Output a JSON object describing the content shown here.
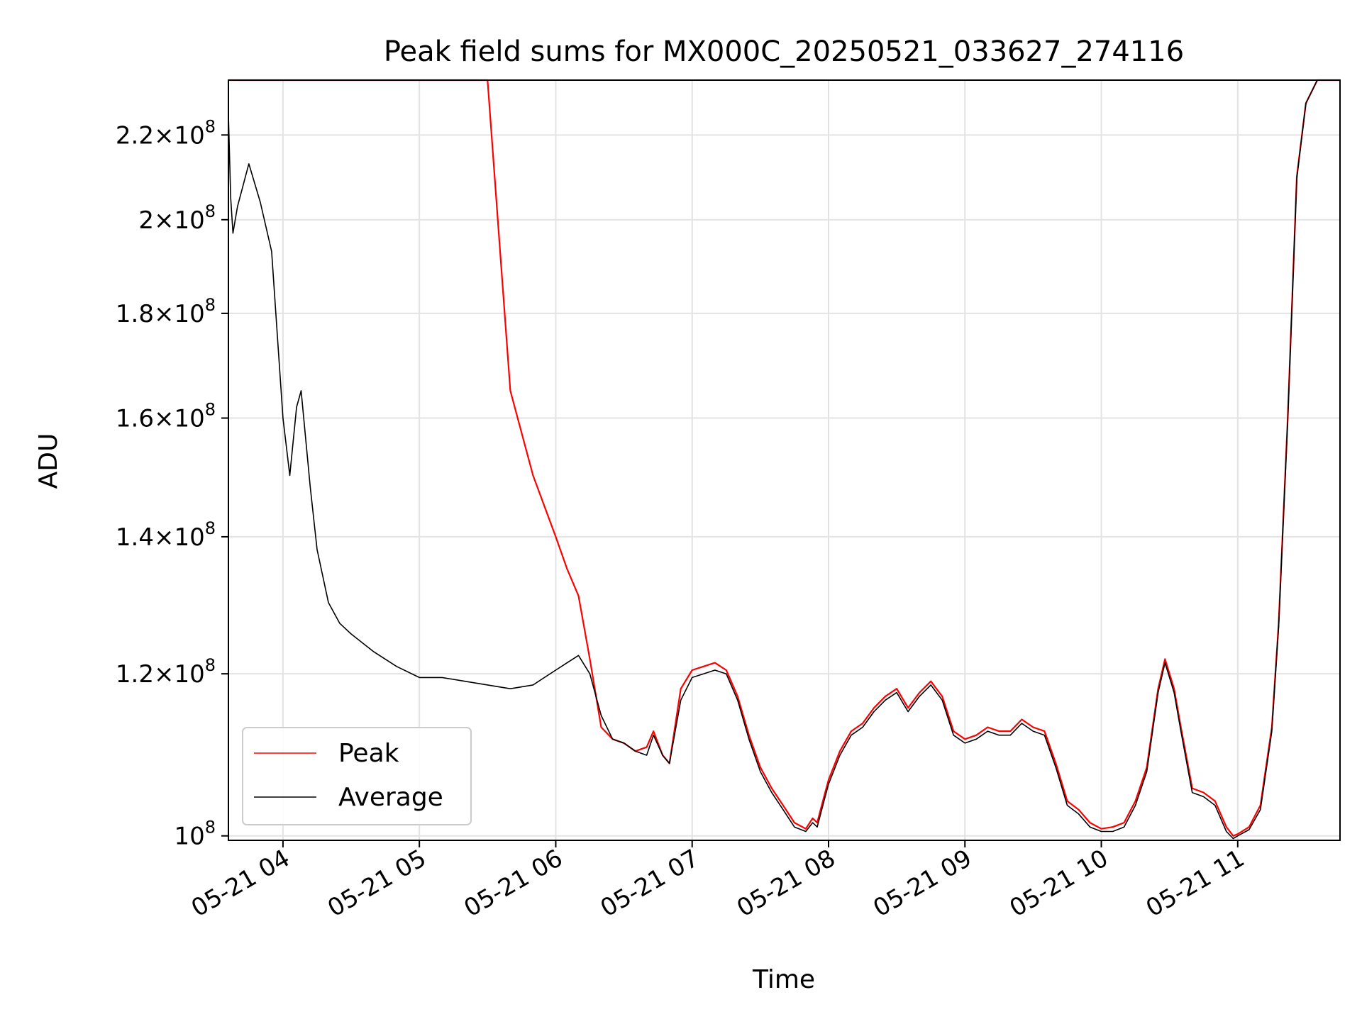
{
  "chart_data": {
    "type": "line",
    "title": "Peak field sums for MX000C_20250521_033627_274116",
    "xlabel": "Time",
    "ylabel": "ADU",
    "xlim": [
      "2025-05-21 03:36",
      "2025-05-21 11:45"
    ],
    "ylim": [
      99500000,
      234000000
    ],
    "yscale": "log",
    "grid": true,
    "legend_position": "lower-left",
    "x_ticks": [
      {
        "t": "2025-05-21 04:00",
        "label": "05-21 04"
      },
      {
        "t": "2025-05-21 05:00",
        "label": "05-21 05"
      },
      {
        "t": "2025-05-21 06:00",
        "label": "05-21 06"
      },
      {
        "t": "2025-05-21 07:00",
        "label": "05-21 07"
      },
      {
        "t": "2025-05-21 08:00",
        "label": "05-21 08"
      },
      {
        "t": "2025-05-21 09:00",
        "label": "05-21 09"
      },
      {
        "t": "2025-05-21 10:00",
        "label": "05-21 10"
      },
      {
        "t": "2025-05-21 11:00",
        "label": "05-21 11"
      }
    ],
    "y_ticks": [
      {
        "v": 100000000,
        "mantissa": "",
        "exp": "8"
      },
      {
        "v": 120000000,
        "mantissa": "1.2",
        "exp": "8"
      },
      {
        "v": 140000000,
        "mantissa": "1.4",
        "exp": "8"
      },
      {
        "v": 160000000,
        "mantissa": "1.6",
        "exp": "8"
      },
      {
        "v": 180000000,
        "mantissa": "1.8",
        "exp": "8"
      },
      {
        "v": 200000000,
        "mantissa": "2",
        "exp": "8"
      },
      {
        "v": 220000000,
        "mantissa": "2.2",
        "exp": "8"
      }
    ],
    "times_sample": [
      "2025-05-21 03:36",
      "2025-05-21 03:37",
      "2025-05-21 03:38",
      "2025-05-21 03:40",
      "2025-05-21 03:45",
      "2025-05-21 03:50",
      "2025-05-21 03:55",
      "2025-05-21 04:00",
      "2025-05-21 04:03",
      "2025-05-21 04:06",
      "2025-05-21 04:08",
      "2025-05-21 04:12",
      "2025-05-21 04:15",
      "2025-05-21 04:20",
      "2025-05-21 04:25",
      "2025-05-21 04:30",
      "2025-05-21 04:40",
      "2025-05-21 04:50",
      "2025-05-21 05:00",
      "2025-05-21 05:10",
      "2025-05-21 05:20",
      "2025-05-21 05:30",
      "2025-05-21 05:40",
      "2025-05-21 05:50",
      "2025-05-21 06:00",
      "2025-05-21 06:05",
      "2025-05-21 06:10",
      "2025-05-21 06:15",
      "2025-05-21 06:20",
      "2025-05-21 06:25",
      "2025-05-21 06:30",
      "2025-05-21 06:35",
      "2025-05-21 06:40",
      "2025-05-21 06:43",
      "2025-05-21 06:47",
      "2025-05-21 06:50",
      "2025-05-21 06:55",
      "2025-05-21 07:00",
      "2025-05-21 07:05",
      "2025-05-21 07:10",
      "2025-05-21 07:15",
      "2025-05-21 07:20",
      "2025-05-21 07:25",
      "2025-05-21 07:30",
      "2025-05-21 07:35",
      "2025-05-21 07:40",
      "2025-05-21 07:45",
      "2025-05-21 07:50",
      "2025-05-21 07:53",
      "2025-05-21 07:55",
      "2025-05-21 07:58",
      "2025-05-21 08:00",
      "2025-05-21 08:05",
      "2025-05-21 08:10",
      "2025-05-21 08:15",
      "2025-05-21 08:20",
      "2025-05-21 08:25",
      "2025-05-21 08:30",
      "2025-05-21 08:35",
      "2025-05-21 08:40",
      "2025-05-21 08:45",
      "2025-05-21 08:50",
      "2025-05-21 08:55",
      "2025-05-21 09:00",
      "2025-05-21 09:05",
      "2025-05-21 09:10",
      "2025-05-21 09:15",
      "2025-05-21 09:20",
      "2025-05-21 09:25",
      "2025-05-21 09:30",
      "2025-05-21 09:35",
      "2025-05-21 09:40",
      "2025-05-21 09:45",
      "2025-05-21 09:50",
      "2025-05-21 09:55",
      "2025-05-21 10:00",
      "2025-05-21 10:05",
      "2025-05-21 10:10",
      "2025-05-21 10:15",
      "2025-05-21 10:20",
      "2025-05-21 10:25",
      "2025-05-21 10:28",
      "2025-05-21 10:32",
      "2025-05-21 10:35",
      "2025-05-21 10:40",
      "2025-05-21 10:45",
      "2025-05-21 10:50",
      "2025-05-21 10:55",
      "2025-05-21 10:58",
      "2025-05-21 11:00",
      "2025-05-21 11:05",
      "2025-05-21 11:10",
      "2025-05-21 11:15",
      "2025-05-21 11:18",
      "2025-05-21 11:22",
      "2025-05-21 11:26",
      "2025-05-21 11:30",
      "2025-05-21 11:35",
      "2025-05-21 11:45"
    ],
    "series": [
      {
        "name": "Peak",
        "color": "#ff0000",
        "note_values": "sampled envelope of the rapidly fluctuating peak trace",
        "values": [
          234000000,
          234000000,
          234000000,
          234000000,
          234000000,
          234000000,
          234000000,
          234000000,
          234000000,
          234000000,
          234000000,
          234000000,
          234000000,
          234000000,
          234000000,
          234000000,
          234000000,
          234000000,
          234000000,
          234000000,
          234000000,
          234000000,
          165000000,
          150000000,
          140000000,
          135000000,
          131000000,
          122000000,
          113000000,
          111500000,
          111000000,
          110000000,
          110500000,
          112500000,
          109500000,
          108500000,
          118000000,
          120500000,
          121000000,
          121500000,
          120500000,
          117000000,
          112000000,
          108000000,
          105500000,
          103500000,
          101500000,
          100800000,
          102000000,
          101500000,
          104500000,
          106500000,
          110000000,
          112500000,
          113500000,
          115500000,
          117000000,
          118000000,
          115500000,
          117500000,
          119000000,
          117000000,
          112500000,
          111500000,
          112000000,
          113000000,
          112500000,
          112500000,
          114000000,
          113000000,
          112500000,
          108500000,
          104000000,
          103000000,
          101500000,
          100800000,
          101000000,
          101500000,
          104000000,
          108000000,
          118000000,
          122000000,
          118000000,
          113000000,
          105500000,
          105000000,
          104000000,
          101000000,
          100000000,
          100200000,
          101000000,
          103500000,
          113000000,
          127000000,
          160000000,
          210000000,
          228000000,
          234000000,
          234000000
        ]
      },
      {
        "name": "Average",
        "color": "#000000",
        "values": [
          225000000,
          205000000,
          197000000,
          203000000,
          213000000,
          204000000,
          193000000,
          160000000,
          150000000,
          162000000,
          165000000,
          148000000,
          138000000,
          130000000,
          127000000,
          125500000,
          123000000,
          121000000,
          119500000,
          119500000,
          119000000,
          118500000,
          118000000,
          118500000,
          120500000,
          121500000,
          122500000,
          120000000,
          114500000,
          111500000,
          111000000,
          110000000,
          109500000,
          112000000,
          109500000,
          108500000,
          116500000,
          119500000,
          120000000,
          120500000,
          120000000,
          116500000,
          111500000,
          107500000,
          105000000,
          103000000,
          101000000,
          100500000,
          101500000,
          101000000,
          104000000,
          106000000,
          109500000,
          112000000,
          113000000,
          115000000,
          116500000,
          117500000,
          115000000,
          117000000,
          118500000,
          116500000,
          112000000,
          111000000,
          111500000,
          112500000,
          112000000,
          112000000,
          113500000,
          112500000,
          112000000,
          108000000,
          103500000,
          102500000,
          101000000,
          100500000,
          100500000,
          101000000,
          103500000,
          107500000,
          117500000,
          121500000,
          117500000,
          112500000,
          105000000,
          104500000,
          103500000,
          100500000,
          99700000,
          100000000,
          100700000,
          103000000,
          112500000,
          126500000,
          159500000,
          209500000,
          228000000,
          234000000,
          234000000
        ]
      }
    ]
  }
}
